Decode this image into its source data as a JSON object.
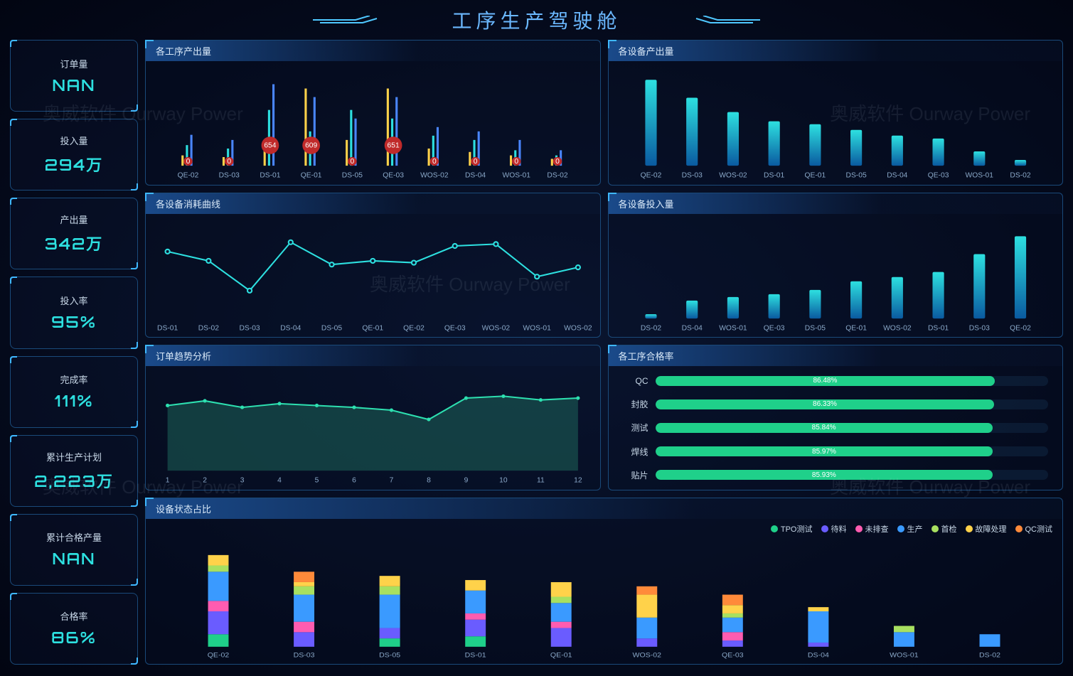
{
  "header": {
    "title": "工序生产驾驶舱"
  },
  "watermark": {
    "text": "奥威软件 Ourway Power"
  },
  "kpis": [
    {
      "label": "订单量",
      "value": "NAN"
    },
    {
      "label": "投入量",
      "value": "294万"
    },
    {
      "label": "产出量",
      "value": "342万"
    },
    {
      "label": "投入率",
      "value": "95%"
    },
    {
      "label": "完成率",
      "value": "111%"
    },
    {
      "label": "累计生产计划",
      "value": "2,223万"
    },
    {
      "label": "累计合格产量",
      "value": "NAN"
    },
    {
      "label": "合格率",
      "value": "86%"
    }
  ],
  "colors": {
    "accent": "#3fb8ff",
    "cyan": "#2de0e0",
    "grid": "#1a4a7a",
    "text": "#c8d8e8",
    "area": "#1db0a8"
  },
  "panel1": {
    "title": "各工序产出量",
    "type": "bar-grouped",
    "categories": [
      "QE-02",
      "DS-03",
      "DS-01",
      "QE-01",
      "DS-05",
      "QE-03",
      "WOS-02",
      "DS-04",
      "WOS-01",
      "DS-02"
    ],
    "series": [
      {
        "color": "#ffd24a",
        "values": [
          12,
          10,
          30,
          90,
          30,
          90,
          20,
          16,
          12,
          8
        ]
      },
      {
        "color": "#2de0e0",
        "values": [
          24,
          20,
          65,
          40,
          65,
          55,
          35,
          30,
          18,
          12
        ]
      },
      {
        "color": "#4a86ff",
        "values": [
          36,
          30,
          95,
          80,
          55,
          80,
          45,
          40,
          30,
          18
        ]
      }
    ],
    "red_bubbles": [
      {
        "idx": 2,
        "value": "654"
      },
      {
        "idx": 3,
        "value": "609"
      },
      {
        "idx": 5,
        "value": "651"
      }
    ],
    "zero_bubbles": [
      0,
      1,
      4,
      6,
      7,
      8,
      9
    ],
    "ymax": 100
  },
  "panel2": {
    "title": "各设备产出量",
    "type": "bar",
    "categories": [
      "QE-02",
      "DS-03",
      "WOS-02",
      "DS-01",
      "QE-01",
      "DS-05",
      "DS-04",
      "QE-03",
      "WOS-01",
      "DS-02"
    ],
    "values": [
      120,
      95,
      75,
      62,
      58,
      50,
      42,
      38,
      20,
      8
    ],
    "ymax": 130,
    "color_from": "#0a5aa0",
    "color_to": "#2de0e0"
  },
  "panel3": {
    "title": "各设备消耗曲线",
    "type": "line",
    "categories": [
      "DS-01",
      "DS-02",
      "DS-03",
      "DS-04",
      "DS-05",
      "QE-01",
      "QE-02",
      "QE-03",
      "WOS-02",
      "WOS-01",
      "WOS-02"
    ],
    "values": [
      72,
      62,
      30,
      82,
      58,
      62,
      60,
      78,
      80,
      45,
      55
    ],
    "ymax": 100,
    "color": "#2de0e0"
  },
  "panel4": {
    "title": "各设备投入量",
    "type": "bar",
    "categories": [
      "DS-02",
      "DS-04",
      "WOS-01",
      "QE-03",
      "DS-05",
      "QE-01",
      "WOS-02",
      "DS-01",
      "DS-03",
      "QE-02"
    ],
    "values": [
      6,
      25,
      30,
      34,
      40,
      52,
      58,
      65,
      90,
      115
    ],
    "ymax": 130,
    "color_from": "#0a5aa0",
    "color_to": "#2de0e0"
  },
  "panel5": {
    "title": "订单趋势分析",
    "type": "area",
    "categories": [
      "1",
      "2",
      "3",
      "4",
      "5",
      "6",
      "7",
      "8",
      "9",
      "10",
      "11",
      "12"
    ],
    "values": [
      70,
      75,
      68,
      72,
      70,
      68,
      65,
      55,
      78,
      80,
      76,
      78
    ],
    "ymax": 100,
    "line_color": "#2de0b0",
    "fill_color": "rgba(30,100,90,0.55)"
  },
  "panel6": {
    "title": "各工序合格率",
    "type": "progress",
    "items": [
      {
        "label": "QC",
        "value": 86.48,
        "text": "86.48%",
        "color": "#1fd08a"
      },
      {
        "label": "封胶",
        "value": 86.33,
        "text": "86.33%",
        "color": "#1fd08a"
      },
      {
        "label": "测试",
        "value": 85.84,
        "text": "85.84%",
        "color": "#1fd08a"
      },
      {
        "label": "焊线",
        "value": 85.97,
        "text": "85.97%",
        "color": "#1fd08a"
      },
      {
        "label": "贴片",
        "value": 85.93,
        "text": "85.93%",
        "color": "#1fd08a"
      }
    ]
  },
  "panel7": {
    "title": "设备状态占比",
    "type": "stacked-bar",
    "categories": [
      "QE-02",
      "DS-03",
      "DS-05",
      "DS-01",
      "QE-01",
      "WOS-02",
      "QE-03",
      "DS-04",
      "WOS-01",
      "DS-02"
    ],
    "legend": [
      {
        "label": "TPO测试",
        "color": "#1fd08a"
      },
      {
        "label": "待料",
        "color": "#6a5cff"
      },
      {
        "label": "未排查",
        "color": "#ff5cb0"
      },
      {
        "label": "生产",
        "color": "#3a9aff"
      },
      {
        "label": "首检",
        "color": "#a8e060"
      },
      {
        "label": "故障处理",
        "color": "#ffd24a"
      },
      {
        "label": "QC测试",
        "color": "#ff8a3a"
      }
    ],
    "stacks": [
      [
        12,
        22,
        10,
        28,
        6,
        10,
        0
      ],
      [
        0,
        14,
        10,
        26,
        8,
        4,
        10
      ],
      [
        8,
        10,
        0,
        32,
        8,
        10,
        0
      ],
      [
        10,
        16,
        6,
        22,
        0,
        10,
        0
      ],
      [
        0,
        18,
        6,
        18,
        6,
        14,
        0
      ],
      [
        0,
        8,
        0,
        20,
        0,
        22,
        8
      ],
      [
        0,
        6,
        8,
        14,
        4,
        8,
        10
      ],
      [
        0,
        4,
        0,
        30,
        0,
        4,
        0
      ],
      [
        0,
        0,
        0,
        14,
        6,
        0,
        0
      ],
      [
        0,
        0,
        0,
        12,
        0,
        0,
        0
      ]
    ],
    "ymax": 100
  }
}
